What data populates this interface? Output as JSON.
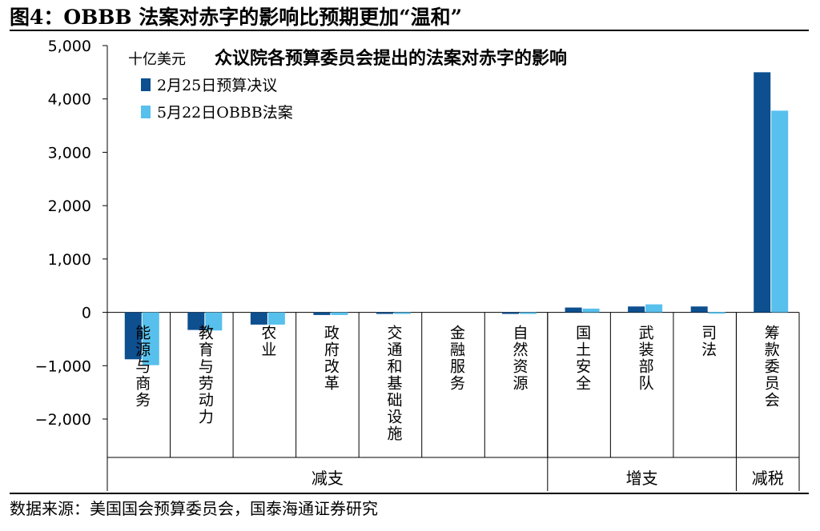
{
  "figure": {
    "title": "图4：OBBB 法案对赤字的影响比预期更加“温和”",
    "source": "数据来源：美国国会预算委员会，国泰海通证券研究"
  },
  "chart_data": {
    "type": "bar",
    "title": "众议院各预算委员会提出的法案对赤字的影响",
    "unit_label": "十亿美元",
    "ylim": [
      -2000,
      5000
    ],
    "yticks": [
      5000,
      4000,
      3000,
      2000,
      1000,
      0,
      -1000,
      -2000
    ],
    "ytick_labels": [
      "5,000",
      "4,000",
      "3,000",
      "2,000",
      "1,000",
      "0",
      "−1,000",
      "−2,000"
    ],
    "grid": false,
    "legend_position": "top-left",
    "categories": [
      "能源与商务",
      "教育与劳动力",
      "农业",
      "政府改革",
      "交通和基础设施",
      "金融服务",
      "自然资源",
      "国土安全",
      "武装部队",
      "司法",
      "筹款委员会"
    ],
    "groups": [
      {
        "label": "减支",
        "categories": [
          "能源与商务",
          "教育与劳动力",
          "农业",
          "政府改革",
          "交通和基础设施",
          "金融服务",
          "自然资源"
        ]
      },
      {
        "label": "增支",
        "categories": [
          "国土安全",
          "武装部队",
          "司法"
        ]
      },
      {
        "label": "减税",
        "categories": [
          "筹款委员会"
        ]
      }
    ],
    "series": [
      {
        "name": "2月25日预算决议",
        "color": "#0d4f8f",
        "values": [
          -880,
          -330,
          -230,
          -50,
          -10,
          0,
          -2,
          90,
          110,
          110,
          4500
        ]
      },
      {
        "name": "5月22日OBBB法案",
        "color": "#57c0ec",
        "values": [
          -990,
          -340,
          -230,
          -50,
          -30,
          0,
          -20,
          70,
          150,
          5,
          3780
        ]
      }
    ]
  }
}
